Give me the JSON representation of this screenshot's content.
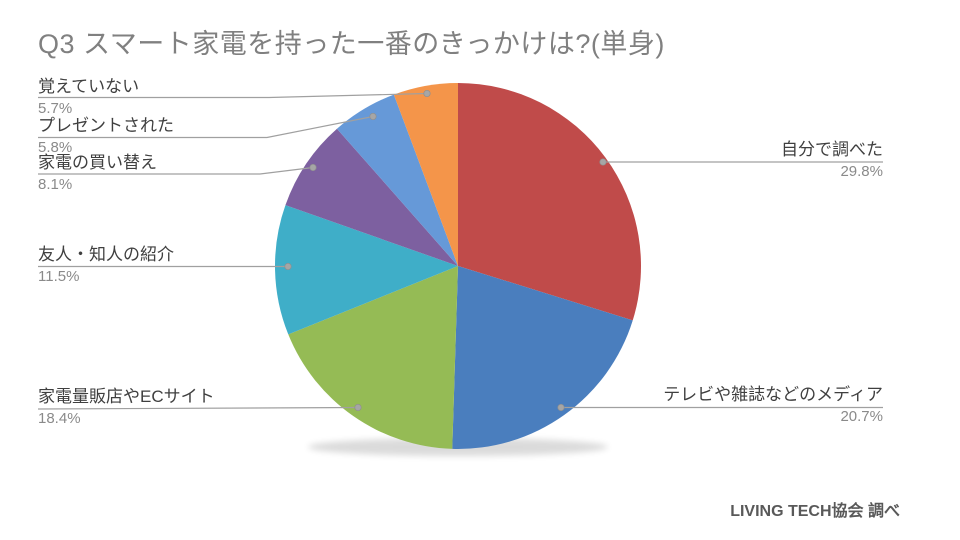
{
  "title": "Q3 スマート家電を持った一番のきっかけは?(単身)",
  "source": "LIVING TECH協会 調べ",
  "chart_data": {
    "type": "pie",
    "title": "Q3 スマート家電を持った一番のきっかけは?(単身)",
    "source_note": "LIVING TECH協会 調べ",
    "start_angle_deg": 0,
    "direction": "clockwise",
    "unit": "%",
    "slices": [
      {
        "label": "自分で調べた",
        "value": 29.8,
        "pct_label": "29.8%",
        "color": "#C04B4A",
        "label_side": "right"
      },
      {
        "label": "テレビや雑誌などのメディア",
        "value": 20.7,
        "pct_label": "20.7%",
        "color": "#4A7EBE",
        "label_side": "right"
      },
      {
        "label": "家電量販店やECサイト",
        "value": 18.4,
        "pct_label": "18.4%",
        "color": "#95BB55",
        "label_side": "left"
      },
      {
        "label": "友人・知人の紹介",
        "value": 11.5,
        "pct_label": "11.5%",
        "color": "#3FAEC8",
        "label_side": "left"
      },
      {
        "label": "家電の買い替え",
        "value": 8.1,
        "pct_label": "8.1%",
        "color": "#7D60A0",
        "label_side": "left"
      },
      {
        "label": "プレゼントされた",
        "value": 5.8,
        "pct_label": "5.8%",
        "color": "#6699D8",
        "label_side": "left"
      },
      {
        "label": "覚えていない",
        "value": 5.7,
        "pct_label": "5.7%",
        "color": "#F4954A",
        "label_side": "left"
      }
    ]
  },
  "style_colors": {
    "title_text": "#808080",
    "label_text": "#3F3F3F",
    "percent_text": "#8A8A8A",
    "leader_line": "#A0A0A0",
    "leader_dot": "#A6A6A6",
    "background": "#FFFFFF"
  }
}
